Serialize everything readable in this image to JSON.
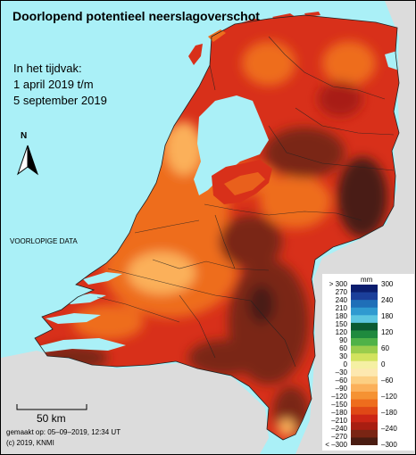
{
  "title": "Doorlopend potentieel neerslagoverschot",
  "period": {
    "line1": "In het tijdvak:",
    "line2": "1 april 2019 t/m",
    "line3": "5 september 2019"
  },
  "north_label": "N",
  "preliminary_label": "VOORLOPIGE DATA",
  "scale_bar_label": "50 km",
  "made_on": "gemaakt op: 05–09–2019, 12:34 UT",
  "copyright": "(c) 2019, KNMI",
  "legend": {
    "unit": "mm",
    "left_labels": [
      "> 300",
      "270",
      "240",
      "210",
      "180",
      "150",
      "120",
      "90",
      "60",
      "30",
      "0",
      "–30",
      "–60",
      "–90",
      "–120",
      "–150",
      "–180",
      "–210",
      "–240",
      "–270",
      "< –300"
    ],
    "right_labels": [
      "300",
      "240",
      "180",
      "120",
      "60",
      "0",
      "–60",
      "–120",
      "–180",
      "–240",
      "–300"
    ],
    "colors": [
      "#0b1d6e",
      "#1b3f9a",
      "#1f6fb8",
      "#2f9ad0",
      "#5cc6e0",
      "#0a5a32",
      "#1f8a3e",
      "#4fb248",
      "#9acd4c",
      "#d2e35e",
      "#f5f0a4",
      "#fde8b0",
      "#fccf83",
      "#fbb05a",
      "#f59233",
      "#ee6d1d",
      "#e04816",
      "#cc2616",
      "#a81e12",
      "#7a2514",
      "#4a1c12"
    ]
  },
  "colors": {
    "sea": "#aaf0f7",
    "land_outside": "#dcdcdc"
  }
}
